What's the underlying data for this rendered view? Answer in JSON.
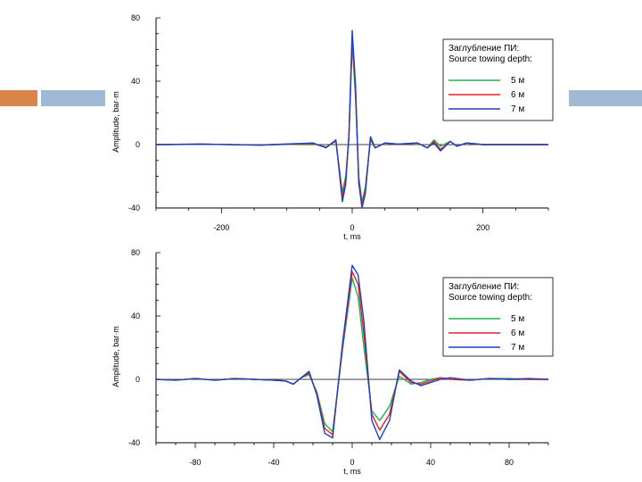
{
  "colors": {
    "decor_orange": "#d7854a",
    "decor_blue": "#9fbad5",
    "series_5m": "#22b24c",
    "series_6m": "#e3242b",
    "series_7m": "#1f3fbf"
  },
  "chart_data": [
    {
      "type": "line",
      "xlabel": "t, ms",
      "ylabel": "Amplitude, bar·m",
      "xlim": [
        -300,
        300
      ],
      "ylim": [
        -40,
        80
      ],
      "xticks": [
        -200,
        0,
        200
      ],
      "yticks": [
        -40,
        0,
        40,
        80
      ],
      "xtick_labels": [
        "-200",
        "0",
        "200"
      ],
      "ytick_labels": [
        "-40",
        "0",
        "40",
        "80"
      ],
      "grid": false,
      "legend_position": "top-right",
      "legend_title": [
        "Заглубление ПИ:",
        "Source towing depth:"
      ],
      "series": [
        {
          "name": "5 м",
          "color_key": "series_5m",
          "x": [
            -300,
            -230,
            -140,
            -60,
            -40,
            -25,
            -15,
            -10,
            -5,
            0,
            5,
            10,
            15,
            20,
            28,
            35,
            50,
            70,
            100,
            115,
            125,
            135,
            150,
            160,
            175,
            200,
            300
          ],
          "y": [
            0,
            0.3,
            -0.3,
            0.6,
            -1.5,
            2,
            -30,
            -20,
            4,
            64,
            30,
            -20,
            -36,
            -27,
            3,
            -2,
            1,
            0.3,
            1,
            -2,
            3,
            -1,
            2,
            -1,
            1,
            0,
            0
          ]
        },
        {
          "name": "6 м",
          "color_key": "series_6m",
          "x": [
            -300,
            -230,
            -140,
            -60,
            -40,
            -25,
            -15,
            -10,
            -5,
            0,
            5,
            10,
            15,
            20,
            28,
            35,
            50,
            70,
            100,
            115,
            125,
            135,
            150,
            160,
            175,
            200,
            300
          ],
          "y": [
            0,
            0.3,
            -0.3,
            0.8,
            -1.8,
            2.5,
            -33,
            -22,
            5,
            68,
            34,
            -22,
            -38,
            -29,
            4,
            -2,
            1,
            0.3,
            1,
            -2,
            2,
            -3,
            2,
            -1,
            1,
            0,
            0
          ]
        },
        {
          "name": "7 м",
          "color_key": "series_7m",
          "x": [
            -300,
            -230,
            -140,
            -60,
            -40,
            -25,
            -15,
            -10,
            -5,
            0,
            5,
            10,
            15,
            20,
            28,
            35,
            50,
            70,
            100,
            115,
            125,
            135,
            150,
            160,
            175,
            200,
            300
          ],
          "y": [
            0,
            0.3,
            -0.3,
            1,
            -2,
            3,
            -36,
            -25,
            6,
            72,
            38,
            -24,
            -40,
            -31,
            5,
            -2,
            1,
            0.3,
            1,
            -2,
            1,
            -4,
            2,
            -1,
            1,
            0,
            0
          ]
        }
      ]
    },
    {
      "type": "line",
      "xlabel": "t, ms",
      "ylabel": "Amplitude, bar·m",
      "xlim": [
        -100,
        100
      ],
      "ylim": [
        -40,
        80
      ],
      "xticks": [
        -80,
        -40,
        0,
        40,
        80
      ],
      "yticks": [
        -40,
        0,
        40,
        80
      ],
      "xtick_labels": [
        "-80",
        "-40",
        "0",
        "40",
        "80"
      ],
      "ytick_labels": [
        "-40",
        "0",
        "40",
        "80"
      ],
      "grid": false,
      "legend_position": "right",
      "legend_title": [
        "Заглубление ПИ:",
        "Source towing depth:"
      ],
      "series": [
        {
          "name": "5 м",
          "color_key": "series_5m",
          "x": [
            -100,
            -90,
            -80,
            -70,
            -60,
            -50,
            -40,
            -34,
            -30,
            -26,
            -22,
            -18,
            -14,
            -10,
            -5,
            0,
            3,
            6,
            10,
            14,
            19,
            24,
            30,
            35,
            40,
            45,
            50,
            60,
            70,
            80,
            90,
            100
          ],
          "y": [
            0,
            -0.5,
            0.5,
            -0.5,
            0.5,
            0,
            -0.5,
            -1,
            -3,
            1,
            3,
            -8,
            -28,
            -33,
            18,
            64,
            52,
            20,
            -20,
            -26,
            -17,
            2,
            -3,
            -2,
            0,
            1,
            0,
            -0.5,
            0.5,
            0.5,
            0,
            0
          ]
        },
        {
          "name": "6 м",
          "color_key": "series_6m",
          "x": [
            -100,
            -90,
            -80,
            -70,
            -60,
            -50,
            -40,
            -34,
            -30,
            -26,
            -22,
            -18,
            -14,
            -10,
            -5,
            0,
            3,
            6,
            10,
            14,
            19,
            24,
            30,
            35,
            40,
            45,
            50,
            60,
            70,
            80,
            90,
            100
          ],
          "y": [
            0,
            -0.5,
            0.5,
            -0.5,
            0.5,
            0,
            -0.5,
            -1,
            -3,
            1,
            4,
            -9,
            -31,
            -35,
            20,
            68,
            60,
            28,
            -22,
            -32,
            -22,
            5,
            -2,
            -3,
            -1,
            1,
            0,
            -0.5,
            0.5,
            0,
            0,
            0
          ]
        },
        {
          "name": "7 м",
          "color_key": "series_7m",
          "x": [
            -100,
            -90,
            -80,
            -70,
            -60,
            -50,
            -40,
            -34,
            -30,
            -26,
            -22,
            -18,
            -14,
            -10,
            -5,
            0,
            3,
            6,
            10,
            14,
            19,
            24,
            30,
            35,
            40,
            45,
            50,
            60,
            70,
            80,
            90,
            100
          ],
          "y": [
            0,
            -0.5,
            0.5,
            -0.5,
            0.5,
            0,
            -0.5,
            -1,
            -3,
            1,
            5,
            -10,
            -34,
            -37,
            22,
            72,
            66,
            36,
            -26,
            -38,
            -26,
            6,
            -1,
            -4,
            -2,
            0,
            1,
            -0.5,
            0.5,
            0,
            0.5,
            0
          ]
        }
      ]
    }
  ]
}
